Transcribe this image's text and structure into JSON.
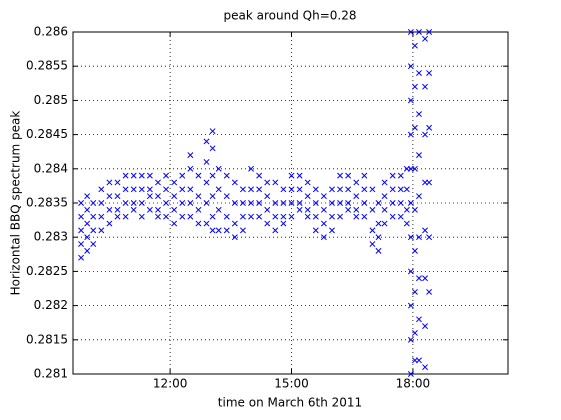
{
  "chart_data": {
    "type": "scatter",
    "title": "peak around Qh=0.28",
    "x_label": "time on March 6th 2011",
    "y_label": "Horizontal BBQ spectrum peak",
    "xlim": [
      9.6,
      20.35
    ],
    "xticks": [
      {
        "value": 12,
        "label": "12:00"
      },
      {
        "value": 15,
        "label": "15:00"
      },
      {
        "value": 18,
        "label": "18:00"
      }
    ],
    "ylim": [
      0.281,
      0.286
    ],
    "yticks": [
      0.281,
      0.2815,
      0.282,
      0.2825,
      0.283,
      0.2835,
      0.284,
      0.2845,
      0.285,
      0.2855,
      0.286
    ],
    "grid": true,
    "marker": "x",
    "x": [
      9.8,
      9.8,
      9.8,
      9.8,
      9.8,
      9.95,
      9.95,
      9.95,
      9.95,
      9.95,
      10.1,
      10.1,
      10.1,
      10.1,
      10.3,
      10.3,
      10.3,
      10.3,
      10.5,
      10.5,
      10.5,
      10.5,
      10.7,
      10.7,
      10.7,
      10.7,
      10.9,
      10.9,
      10.9,
      10.9,
      11.1,
      11.1,
      11.1,
      11.1,
      11.3,
      11.3,
      11.3,
      11.3,
      11.5,
      11.5,
      11.5,
      11.5,
      11.7,
      11.7,
      11.7,
      11.7,
      11.9,
      11.9,
      11.9,
      11.9,
      12.1,
      12.1,
      12.1,
      12.1,
      12.3,
      12.3,
      12.3,
      12.3,
      12.5,
      12.5,
      12.5,
      12.5,
      12.5,
      12.7,
      12.7,
      12.7,
      12.7,
      12.9,
      12.9,
      12.9,
      12.9,
      12.9,
      13.05,
      13.05,
      13.05,
      13.05,
      13.05,
      13.05,
      13.2,
      13.2,
      13.2,
      13.2,
      13.4,
      13.4,
      13.4,
      13.4,
      13.6,
      13.6,
      13.6,
      13.6,
      13.8,
      13.8,
      13.8,
      13.8,
      14.0,
      14.0,
      14.0,
      14.0,
      14.2,
      14.2,
      14.2,
      14.2,
      14.4,
      14.4,
      14.4,
      14.4,
      14.6,
      14.6,
      14.6,
      14.6,
      14.8,
      14.8,
      14.8,
      14.8,
      15.0,
      15.0,
      15.0,
      15.0,
      15.2,
      15.2,
      15.2,
      15.2,
      15.4,
      15.4,
      15.4,
      15.4,
      15.6,
      15.6,
      15.6,
      15.6,
      15.8,
      15.8,
      15.8,
      15.8,
      16.0,
      16.0,
      16.0,
      16.0,
      16.2,
      16.2,
      16.2,
      16.2,
      16.4,
      16.4,
      16.4,
      16.4,
      16.6,
      16.6,
      16.6,
      16.6,
      16.8,
      16.8,
      16.8,
      16.8,
      17.0,
      17.0,
      17.0,
      17.0,
      17.15,
      17.15,
      17.15,
      17.15,
      17.3,
      17.3,
      17.3,
      17.3,
      17.5,
      17.5,
      17.5,
      17.5,
      17.7,
      17.7,
      17.7,
      17.7,
      17.85,
      17.85,
      17.85,
      17.85,
      17.95,
      17.95,
      17.95,
      17.95,
      17.95,
      17.95,
      17.95,
      17.95,
      17.95,
      17.95,
      17.95,
      18.05,
      18.05,
      18.05,
      18.05,
      18.05,
      18.05,
      18.05,
      18.05,
      18.05,
      18.15,
      18.15,
      18.15,
      18.15,
      18.15,
      18.15,
      18.15,
      18.15,
      18.15,
      18.3,
      18.3,
      18.3,
      18.3,
      18.3,
      18.3,
      18.3,
      18.3,
      18.4,
      18.4,
      18.4,
      18.4,
      18.4,
      18.4
    ],
    "series": [
      {
        "color": "#0000ff",
        "values": [
          0.2835,
          0.2833,
          0.2831,
          0.2829,
          0.2827,
          0.2836,
          0.2834,
          0.2832,
          0.283,
          0.2828,
          0.2835,
          0.2833,
          0.2831,
          0.2829,
          0.2837,
          0.2835,
          0.2833,
          0.2831,
          0.2838,
          0.2836,
          0.2834,
          0.2832,
          0.2838,
          0.2836,
          0.2834,
          0.2833,
          0.2839,
          0.2837,
          0.2835,
          0.2833,
          0.2839,
          0.2837,
          0.2835,
          0.2834,
          0.2839,
          0.2837,
          0.2835,
          0.2833,
          0.2839,
          0.2837,
          0.2836,
          0.2834,
          0.2838,
          0.2836,
          0.2834,
          0.2833,
          0.2839,
          0.2837,
          0.2835,
          0.2833,
          0.2838,
          0.2836,
          0.2834,
          0.2832,
          0.2839,
          0.2837,
          0.2835,
          0.2833,
          0.2842,
          0.284,
          0.2837,
          0.2835,
          0.2833,
          0.2839,
          0.2836,
          0.2834,
          0.2832,
          0.2844,
          0.2841,
          0.2838,
          0.2835,
          0.2832,
          0.28455,
          0.2843,
          0.2839,
          0.2836,
          0.2833,
          0.2831,
          0.284,
          0.2837,
          0.2834,
          0.2831,
          0.2839,
          0.2836,
          0.2833,
          0.2831,
          0.2838,
          0.2835,
          0.2832,
          0.283,
          0.2837,
          0.2835,
          0.2833,
          0.2831,
          0.284,
          0.2837,
          0.2835,
          0.2833,
          0.2839,
          0.2837,
          0.2835,
          0.2833,
          0.2838,
          0.2836,
          0.2834,
          0.2832,
          0.2838,
          0.2835,
          0.2833,
          0.2831,
          0.2837,
          0.2835,
          0.2833,
          0.2832,
          0.2839,
          0.2837,
          0.2835,
          0.2833,
          0.2839,
          0.2837,
          0.2835,
          0.2834,
          0.2838,
          0.2836,
          0.2834,
          0.2833,
          0.2837,
          0.2835,
          0.2833,
          0.2831,
          0.2836,
          0.2834,
          0.2832,
          0.283,
          0.2837,
          0.2835,
          0.2833,
          0.2831,
          0.2839,
          0.2837,
          0.2835,
          0.2833,
          0.2839,
          0.2837,
          0.2835,
          0.2834,
          0.2838,
          0.2836,
          0.2834,
          0.2833,
          0.2839,
          0.2837,
          0.2835,
          0.2833,
          0.2837,
          0.2834,
          0.2831,
          0.2829,
          0.2835,
          0.2832,
          0.283,
          0.2828,
          0.2838,
          0.2836,
          0.2834,
          0.2832,
          0.2839,
          0.2837,
          0.2835,
          0.2833,
          0.2839,
          0.2837,
          0.2835,
          0.2833,
          0.284,
          0.2837,
          0.2834,
          0.2832,
          0.286,
          0.2855,
          0.285,
          0.2845,
          0.284,
          0.2835,
          0.283,
          0.2825,
          0.282,
          0.2815,
          0.281,
          0.2858,
          0.2852,
          0.2846,
          0.284,
          0.2834,
          0.2828,
          0.2822,
          0.2816,
          0.2812,
          0.286,
          0.2854,
          0.2848,
          0.2842,
          0.2836,
          0.283,
          0.2824,
          0.2818,
          0.2812,
          0.2859,
          0.2852,
          0.2845,
          0.2838,
          0.2831,
          0.2824,
          0.2817,
          0.2811,
          0.286,
          0.2854,
          0.2846,
          0.2838,
          0.283,
          0.2822
        ]
      }
    ]
  }
}
